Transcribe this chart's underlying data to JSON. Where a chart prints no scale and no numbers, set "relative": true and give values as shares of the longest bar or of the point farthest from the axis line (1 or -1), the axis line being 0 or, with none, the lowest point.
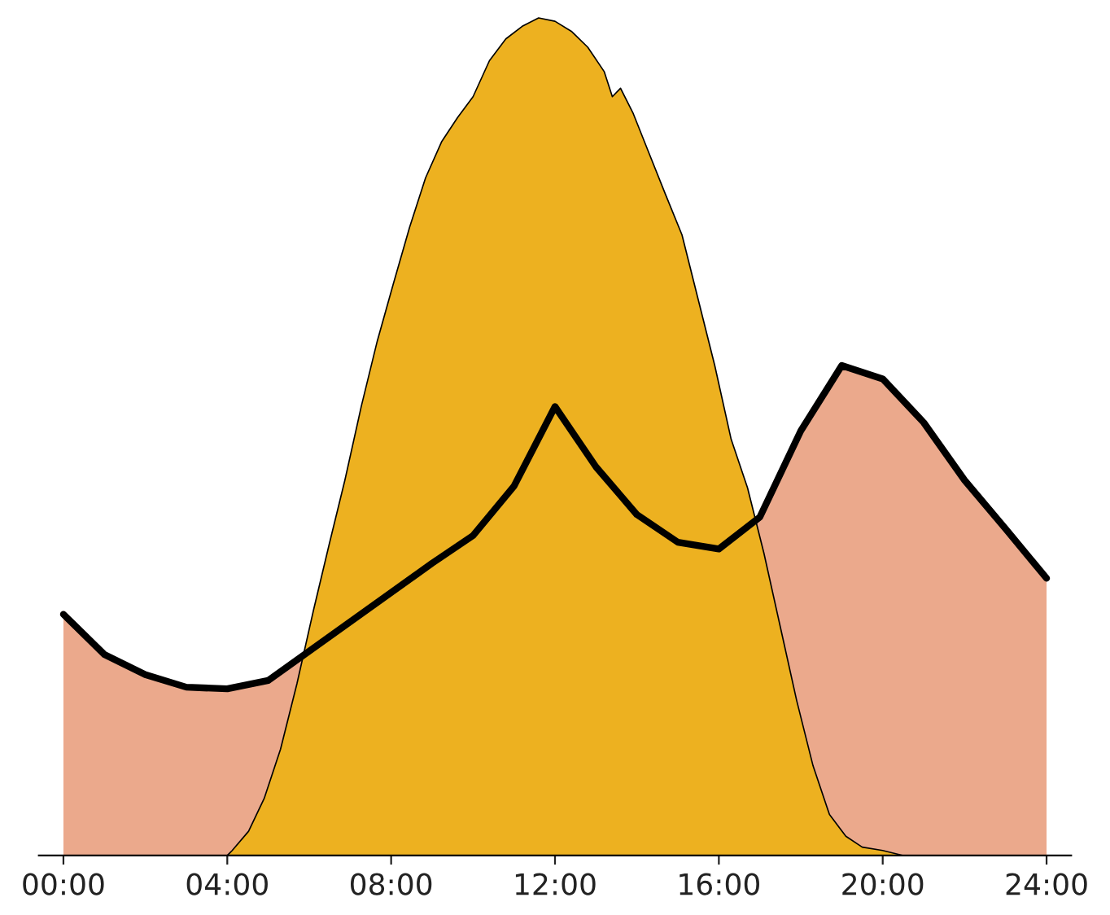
{
  "chart_data": {
    "type": "area",
    "relative": true,
    "tick_labels": "x",
    "grid": false,
    "xlim": [
      -0.6,
      24.6
    ],
    "xticks": [
      {
        "value": 0,
        "label": "00:00"
      },
      {
        "value": 4,
        "label": "04:00"
      },
      {
        "value": 8,
        "label": "08:00"
      },
      {
        "value": 12,
        "label": "12:00"
      },
      {
        "value": 16,
        "label": "16:00"
      },
      {
        "value": 20,
        "label": "20:00"
      },
      {
        "value": 24,
        "label": "24:00"
      }
    ],
    "series": [
      {
        "color": "#eba98c",
        "line_style": "solid",
        "x": [
          0,
          1,
          2,
          3,
          4,
          5,
          6,
          7,
          8,
          9,
          10,
          11,
          12,
          13,
          14,
          15,
          16,
          17,
          18,
          19,
          20,
          21,
          22,
          23,
          24
        ],
        "values": [
          0.288,
          0.24,
          0.216,
          0.201,
          0.199,
          0.209,
          0.244,
          0.279,
          0.314,
          0.349,
          0.382,
          0.441,
          0.536,
          0.464,
          0.407,
          0.374,
          0.366,
          0.404,
          0.507,
          0.585,
          0.569,
          0.517,
          0.448,
          0.39,
          0.331
        ]
      },
      {
        "color": "#edb120",
        "x": [
          0,
          4.0,
          4.12,
          4.52,
          4.9,
          5.3,
          5.7,
          6.1,
          6.48,
          6.87,
          7.27,
          7.66,
          8.05,
          8.45,
          8.84,
          9.23,
          9.62,
          10.0,
          10.4,
          10.8,
          11.2,
          11.6,
          12.0,
          12.4,
          12.8,
          13.2,
          13.4,
          13.6,
          13.9,
          14.3,
          14.7,
          15.1,
          15.5,
          15.9,
          16.3,
          16.7,
          17.1,
          17.5,
          17.9,
          18.3,
          18.7,
          19.1,
          19.5,
          20.0,
          20.5,
          24
        ],
        "values": [
          0,
          0,
          0.006,
          0.029,
          0.068,
          0.127,
          0.205,
          0.292,
          0.37,
          0.448,
          0.536,
          0.614,
          0.682,
          0.75,
          0.809,
          0.852,
          0.881,
          0.906,
          0.949,
          0.975,
          0.99,
          1.0,
          0.996,
          0.984,
          0.965,
          0.936,
          0.906,
          0.916,
          0.887,
          0.838,
          0.789,
          0.741,
          0.663,
          0.585,
          0.497,
          0.439,
          0.361,
          0.273,
          0.185,
          0.107,
          0.049,
          0.023,
          0.01,
          0.006,
          0,
          0
        ]
      }
    ]
  }
}
